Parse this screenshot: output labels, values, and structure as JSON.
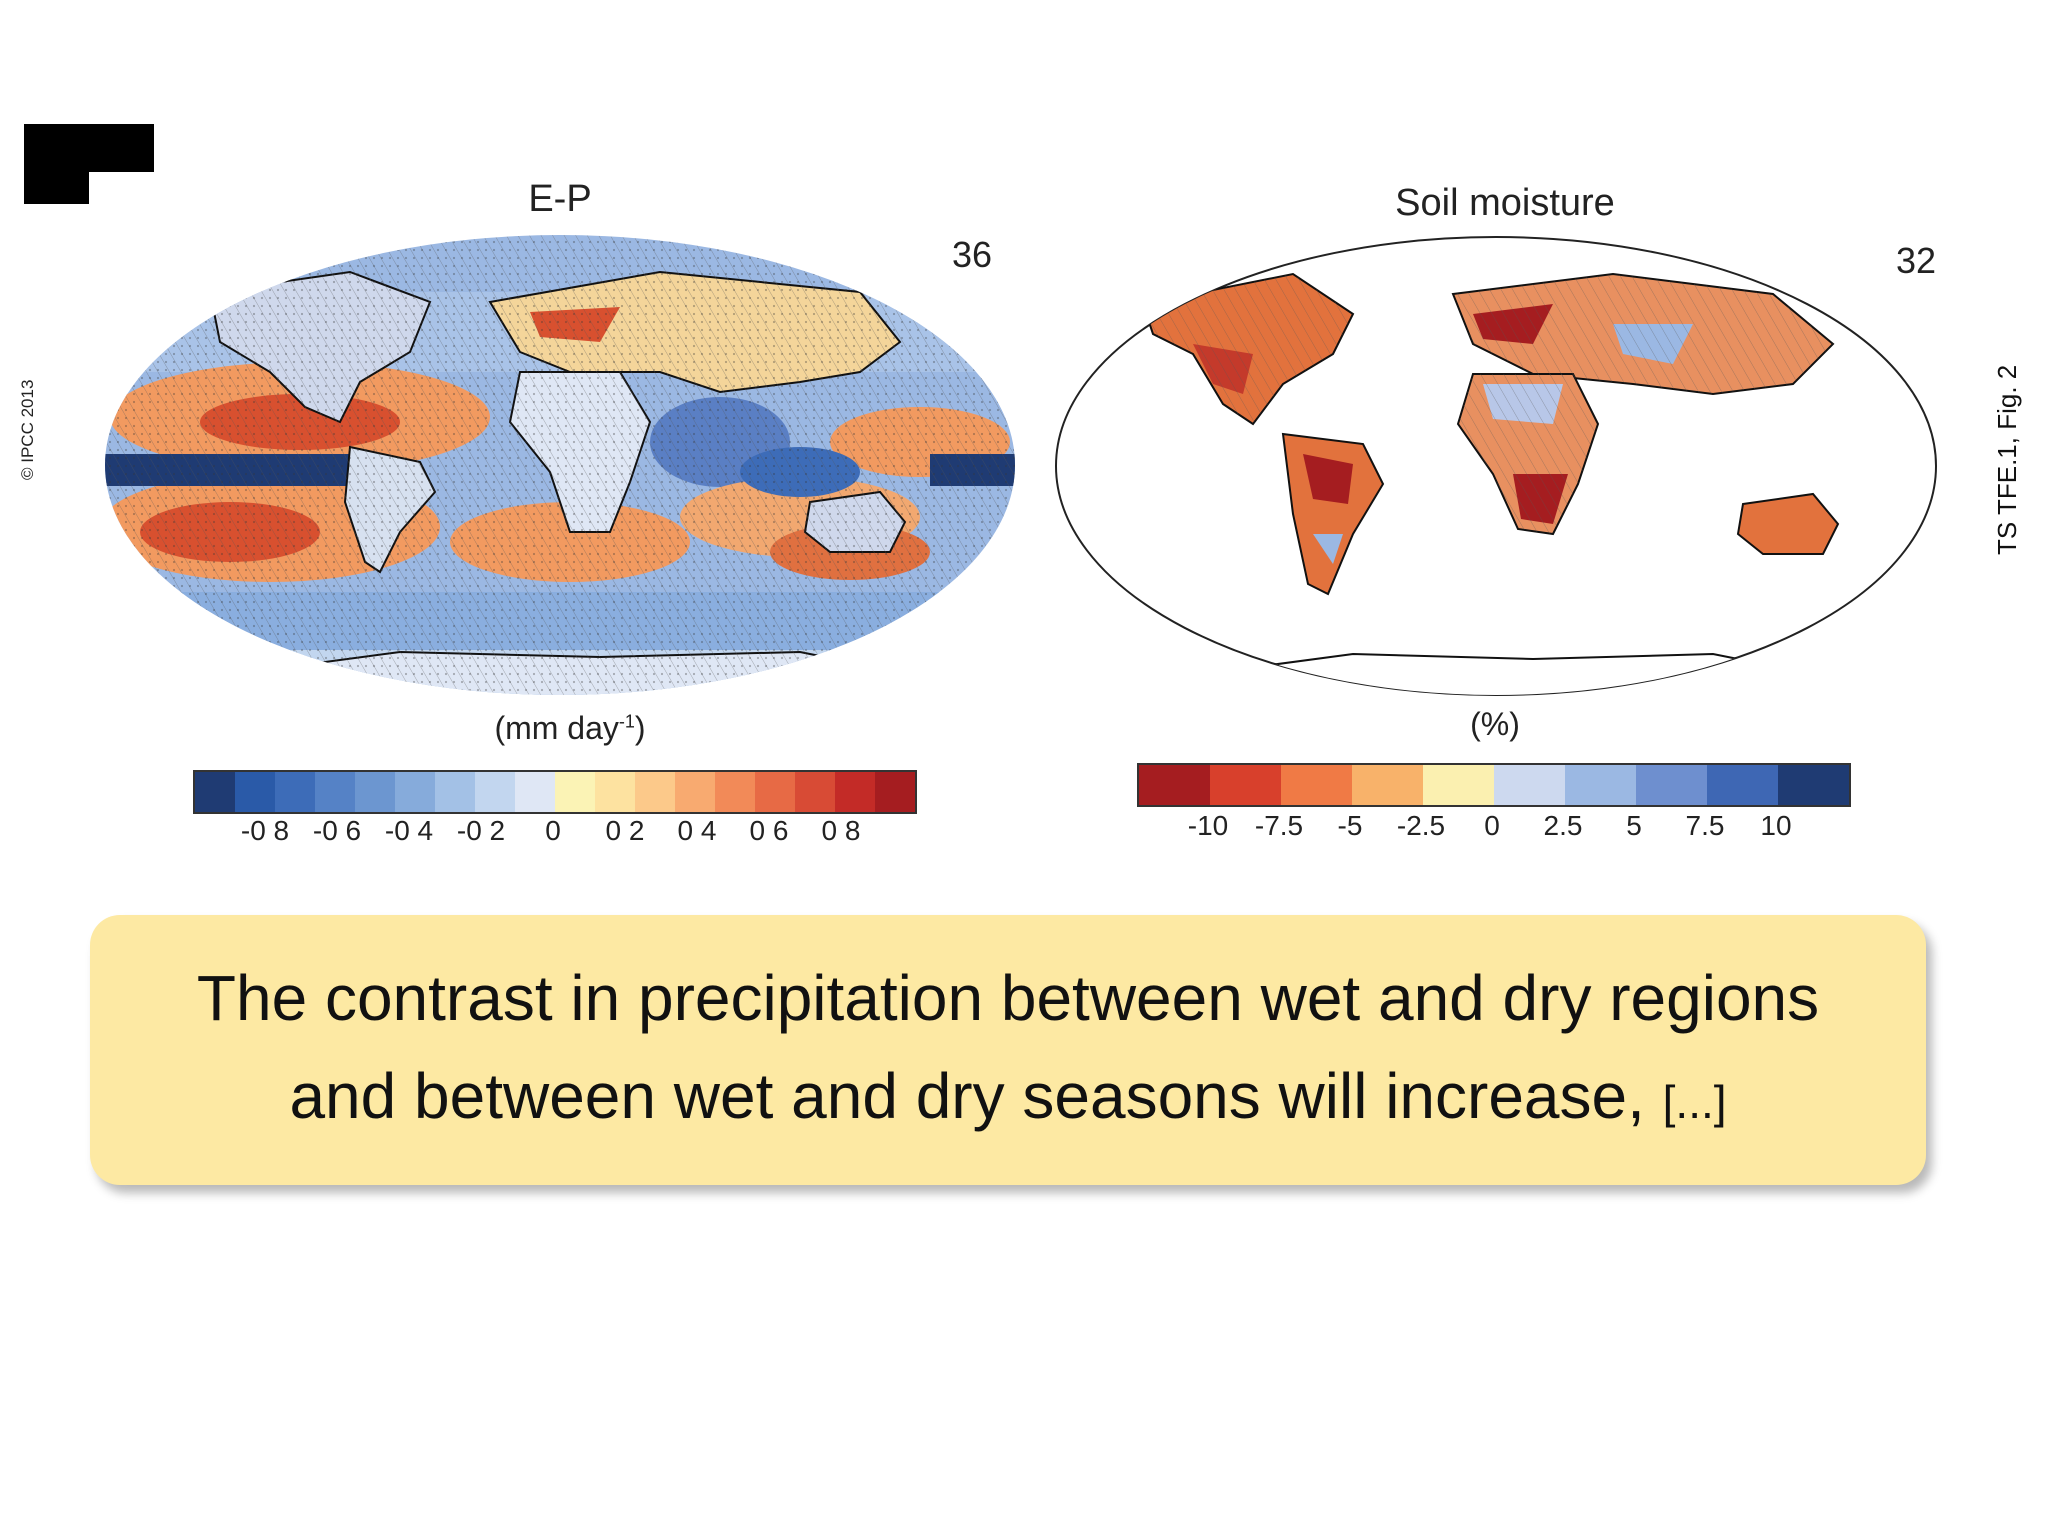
{
  "slide": {
    "copyright": "© IPCC 2013",
    "figure_ref": "TS TFE.1, Fig. 2"
  },
  "maps": [
    {
      "title": "E-P",
      "model_count": "36",
      "unit_text": "(mm day",
      "unit_sup": "-1",
      "unit_close": ")",
      "colorbar": {
        "ticks": [
          "-0 8",
          "-0 6",
          "-0 4",
          "-0 2",
          "0",
          "0 2",
          "0 4",
          "0 6",
          "0 8"
        ],
        "colors": [
          "#1f3b73",
          "#2a5aa8",
          "#3d6cb8",
          "#5582c6",
          "#6c96d0",
          "#86abdb",
          "#a3c1e6",
          "#c2d6ef",
          "#dfe7f5",
          "#fbf3b5",
          "#fde2a0",
          "#fcc98a",
          "#f8aa70",
          "#f28a58",
          "#e76a45",
          "#d84b35",
          "#c32b27",
          "#a51d20"
        ]
      },
      "palette": {
        "ocean_wet": "#9bb8e3",
        "tropical_wet": "#1f3b73",
        "dry": "#f29a60",
        "very_dry": "#c4322b",
        "land_fill": "#cfd8ec"
      }
    },
    {
      "title": "Soil moisture",
      "model_count": "32",
      "unit_text": "(%)",
      "colorbar": {
        "ticks": [
          "-10",
          "-7.5",
          "-5",
          "-2.5",
          "0",
          "2.5",
          "5",
          "7.5",
          "10"
        ],
        "colors": [
          "#a51d20",
          "#d8402c",
          "#f07a45",
          "#f8b26a",
          "#fbf0b0",
          "#cdd9ef",
          "#9bb8e3",
          "#6e8fcf",
          "#3e67b4",
          "#1f3b73"
        ]
      },
      "palette": {
        "drying": "#e2723d",
        "strong_drying": "#a51d20",
        "wetting": "#9bb8e3",
        "background": "#ffffff"
      }
    }
  ],
  "callout": {
    "line1": "The contrast in precipitation between wet and dry regions",
    "line2": "and between wet and dry seasons will increase,",
    "ellipsis": "[...]",
    "background": "#fde9a3"
  }
}
